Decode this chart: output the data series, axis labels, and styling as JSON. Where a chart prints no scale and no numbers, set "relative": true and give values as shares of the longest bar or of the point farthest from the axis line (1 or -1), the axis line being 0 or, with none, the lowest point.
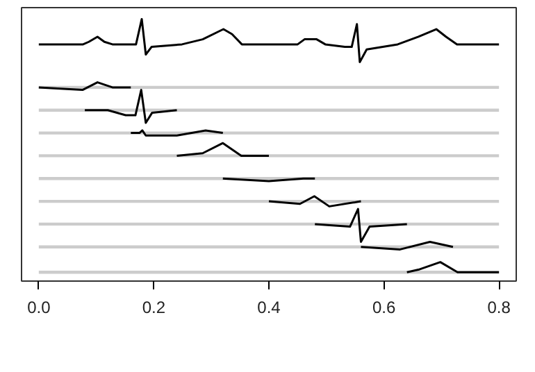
{
  "chart_data": {
    "type": "line",
    "relative": true,
    "xlim": [
      -0.03,
      0.83
    ],
    "xticks": [
      {
        "value": 0,
        "label": "0.0"
      },
      0.2,
      0.4,
      0.6,
      0.8
    ],
    "line_style": "solid",
    "series": [
      {
        "color": "#cccccc",
        "x": [
          0,
          0.8
        ],
        "values": [
          0.73,
          0.73
        ]
      },
      {
        "color": "#cccccc",
        "x": [
          0,
          0.8
        ],
        "values": [
          0.64,
          0.64
        ]
      },
      {
        "color": "#cccccc",
        "x": [
          0,
          0.8
        ],
        "values": [
          0.55,
          0.55
        ]
      },
      {
        "color": "#cccccc",
        "x": [
          0,
          0.8
        ],
        "values": [
          0.46,
          0.46
        ]
      },
      {
        "color": "#cccccc",
        "x": [
          0,
          0.8
        ],
        "values": [
          0.37,
          0.37
        ]
      },
      {
        "color": "#cccccc",
        "x": [
          0,
          0.8
        ],
        "values": [
          0.28,
          0.28
        ]
      },
      {
        "color": "#cccccc",
        "x": [
          0,
          0.8
        ],
        "values": [
          0.19,
          0.19
        ]
      },
      {
        "color": "#cccccc",
        "x": [
          0,
          0.8
        ],
        "values": [
          0.1,
          0.1
        ]
      },
      {
        "color": "#cccccc",
        "x": [
          0,
          0.8
        ],
        "values": [
          0.0,
          0.0
        ]
      },
      {
        "color": "#000000",
        "x": [
          0,
          0.077,
          0.087,
          0.102,
          0.114,
          0.128,
          0.169,
          0.179,
          0.186,
          0.196,
          0.249,
          0.285,
          0.321,
          0.336,
          0.353,
          0.45,
          0.462,
          0.483,
          0.498,
          0.532,
          0.544,
          0.553,
          0.558,
          0.57,
          0.624,
          0.66,
          0.691,
          0.708,
          0.727,
          0.8
        ],
        "values": [
          0.9,
          0.9,
          0.91,
          0.93,
          0.91,
          0.9,
          0.9,
          1.0,
          0.86,
          0.89,
          0.9,
          0.92,
          0.96,
          0.94,
          0.9,
          0.9,
          0.92,
          0.92,
          0.9,
          0.89,
          0.89,
          0.98,
          0.83,
          0.88,
          0.9,
          0.93,
          0.96,
          0.93,
          0.9,
          0.9
        ]
      },
      {
        "color": "#000000",
        "x": [
          0,
          0.076,
          0.102,
          0.128,
          0.16
        ],
        "values": [
          0.73,
          0.72,
          0.75,
          0.73,
          0.73
        ]
      },
      {
        "color": "#000000",
        "x": [
          0.08,
          0.12,
          0.151,
          0.168,
          0.178,
          0.186,
          0.197,
          0.24
        ],
        "values": [
          0.64,
          0.64,
          0.62,
          0.62,
          0.72,
          0.59,
          0.63,
          0.64
        ]
      },
      {
        "color": "#000000",
        "x": [
          0.16,
          0.175,
          0.18,
          0.186,
          0.24,
          0.29,
          0.32
        ],
        "values": [
          0.55,
          0.55,
          0.56,
          0.54,
          0.54,
          0.56,
          0.55
        ]
      },
      {
        "color": "#000000",
        "x": [
          0.24,
          0.285,
          0.32,
          0.352,
          0.4
        ],
        "values": [
          0.46,
          0.47,
          0.51,
          0.46,
          0.46
        ]
      },
      {
        "color": "#000000",
        "x": [
          0.32,
          0.4,
          0.46,
          0.48
        ],
        "values": [
          0.37,
          0.36,
          0.37,
          0.37
        ]
      },
      {
        "color": "#000000",
        "x": [
          0.4,
          0.454,
          0.479,
          0.505,
          0.56
        ],
        "values": [
          0.28,
          0.27,
          0.3,
          0.26,
          0.28
        ]
      },
      {
        "color": "#000000",
        "x": [
          0.48,
          0.541,
          0.555,
          0.56,
          0.575,
          0.64
        ],
        "values": [
          0.19,
          0.18,
          0.25,
          0.12,
          0.18,
          0.19
        ]
      },
      {
        "color": "#000000",
        "x": [
          0.56,
          0.628,
          0.68,
          0.72
        ],
        "values": [
          0.1,
          0.09,
          0.12,
          0.1
        ]
      },
      {
        "color": "#000000",
        "x": [
          0.64,
          0.66,
          0.698,
          0.728,
          0.8
        ],
        "values": [
          0.0,
          0.01,
          0.04,
          0.0,
          0.0
        ]
      }
    ]
  }
}
